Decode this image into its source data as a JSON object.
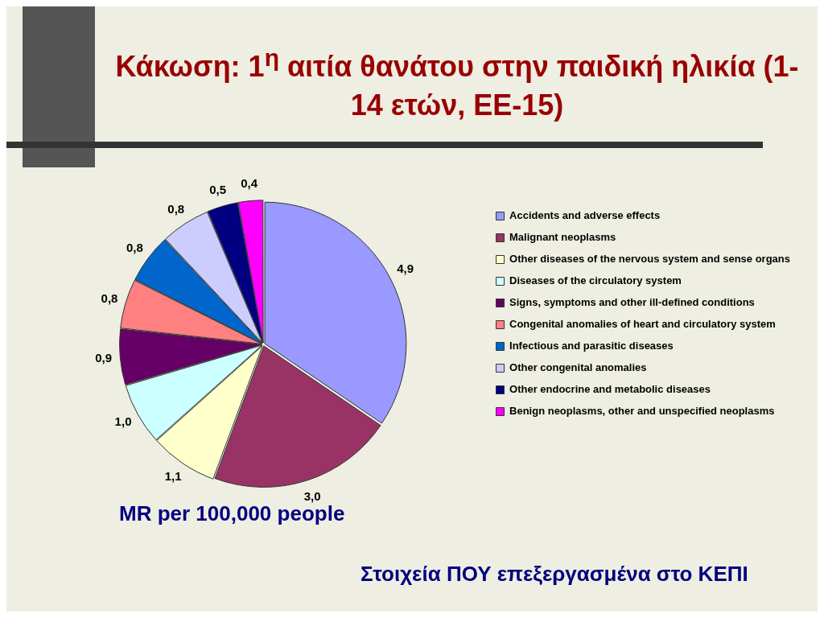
{
  "chart_data": {
    "type": "pie",
    "title": "Κάκωση: 1$^{η}$ αιτία θανάτου στην παιδική ηλικία (1-14 ετών, ΕΕ-15)",
    "categories": [
      "Accidents and adverse effects",
      "Malignant neoplasms",
      "Other diseases of the nervous system and sense organs",
      "Diseases of the circulatory system",
      "Signs, symptoms and other ill-defined conditions",
      "Congenital anomalies of heart and circulatory system",
      "Infectious and parasitic diseases",
      "Other congenital anomalies",
      "Other endocrine and metabolic diseases",
      "Benign neoplasms, other and unspecified neoplasms"
    ],
    "values": [
      4.9,
      3.0,
      1.1,
      1.0,
      0.9,
      0.8,
      0.8,
      0.8,
      0.5,
      0.4
    ],
    "value_labels": [
      "4,9",
      "3,0",
      "1,1",
      "1,0",
      "0,9",
      "0,8",
      "0,8",
      "0,8",
      "0,5",
      "0,4"
    ],
    "colors": [
      "#9999ff",
      "#993366",
      "#ffffcc",
      "#ccffff",
      "#660066",
      "#ff8080",
      "#0066cc",
      "#ccccff",
      "#000080",
      "#ff00ff"
    ],
    "legend": "right",
    "annotations": [
      "MR per 100,000 people",
      "Στοιχεία ΠΟΥ επεξεργασμένα στο ΚΕΠΙ"
    ]
  }
}
